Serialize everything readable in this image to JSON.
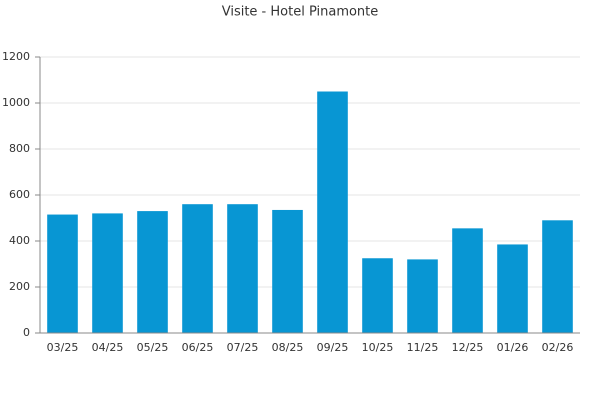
{
  "chart_data": {
    "type": "bar",
    "title": "Visite - Hotel Pinamonte",
    "categories": [
      "03/25",
      "04/25",
      "05/25",
      "06/25",
      "07/25",
      "08/25",
      "09/25",
      "10/25",
      "11/25",
      "12/25",
      "01/26",
      "02/26"
    ],
    "values": [
      515,
      520,
      530,
      560,
      560,
      535,
      1050,
      325,
      320,
      455,
      385,
      490
    ],
    "color": "#0896d3",
    "ylim": [
      0,
      1200
    ],
    "yticks": [
      0,
      200,
      400,
      600,
      800,
      1000,
      1200
    ],
    "grid": true
  }
}
